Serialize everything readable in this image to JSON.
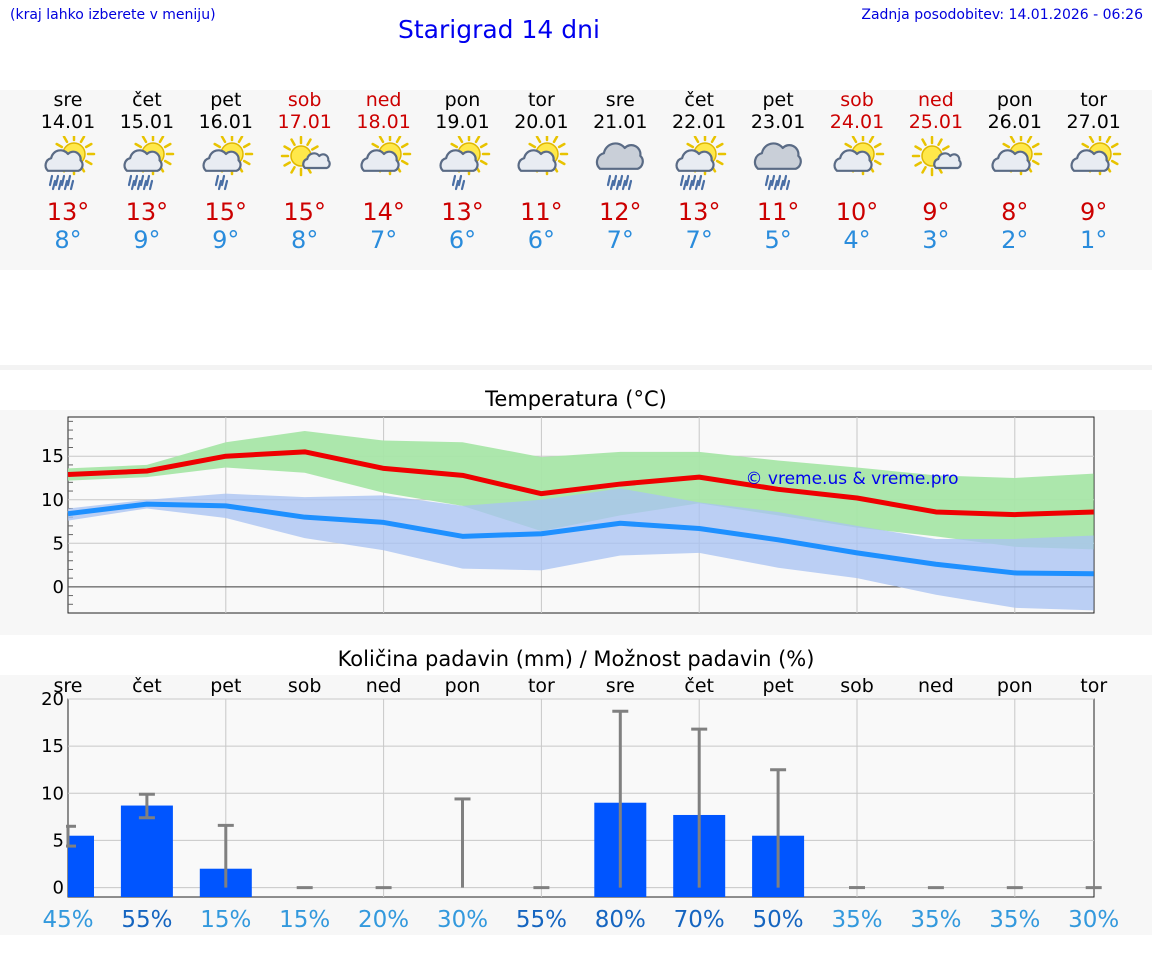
{
  "header": {
    "hint": "(kraj lahko izberete v meniju)",
    "title": "Starigrad 14 dni",
    "updated": "Zadnja posodobitev: 14.01.2026 - 06:26"
  },
  "days": [
    {
      "name": "sre",
      "date": "14.01",
      "weekend": false,
      "max": "13°",
      "min": "8°",
      "icon": "sun-cloud-rain-icon"
    },
    {
      "name": "čet",
      "date": "15.01",
      "weekend": false,
      "max": "13°",
      "min": "9°",
      "icon": "sun-cloud-rain-icon"
    },
    {
      "name": "pet",
      "date": "16.01",
      "weekend": false,
      "max": "15°",
      "min": "9°",
      "icon": "sun-cloud-light-rain-icon"
    },
    {
      "name": "sob",
      "date": "17.01",
      "weekend": true,
      "max": "15°",
      "min": "8°",
      "icon": "sun-small-cloud-icon"
    },
    {
      "name": "ned",
      "date": "18.01",
      "weekend": true,
      "max": "14°",
      "min": "7°",
      "icon": "sun-cloud-icon"
    },
    {
      "name": "pon",
      "date": "19.01",
      "weekend": false,
      "max": "13°",
      "min": "6°",
      "icon": "sun-cloud-light-rain-icon"
    },
    {
      "name": "tor",
      "date": "20.01",
      "weekend": false,
      "max": "11°",
      "min": "6°",
      "icon": "sun-cloud-icon"
    },
    {
      "name": "sre",
      "date": "21.01",
      "weekend": false,
      "max": "12°",
      "min": "7°",
      "icon": "cloud-rain-icon"
    },
    {
      "name": "čet",
      "date": "22.01",
      "weekend": false,
      "max": "13°",
      "min": "7°",
      "icon": "sun-cloud-rain-icon"
    },
    {
      "name": "pet",
      "date": "23.01",
      "weekend": false,
      "max": "11°",
      "min": "5°",
      "icon": "cloud-rain-icon"
    },
    {
      "name": "sob",
      "date": "24.01",
      "weekend": true,
      "max": "10°",
      "min": "4°",
      "icon": "sun-cloud-icon"
    },
    {
      "name": "ned",
      "date": "25.01",
      "weekend": true,
      "max": "9°",
      "min": "3°",
      "icon": "sun-small-cloud-icon"
    },
    {
      "name": "pon",
      "date": "26.01",
      "weekend": false,
      "max": "8°",
      "min": "2°",
      "icon": "sun-cloud-icon"
    },
    {
      "name": "tor",
      "date": "27.01",
      "weekend": false,
      "max": "9°",
      "min": "1°",
      "icon": "sun-cloud-icon"
    }
  ],
  "colors": {
    "max_line": "#ee0000",
    "min_line": "#1e90ff",
    "max_band": "#a8e6a8",
    "min_band": "#a9c3f2",
    "bar": "#0055ff",
    "whisker": "#808080",
    "weekend": "#cc0000"
  },
  "chart_data": [
    {
      "type": "line",
      "title": "Temperatura (°C)",
      "watermark": "© vreme.us & vreme.pro",
      "categories": [
        "sre",
        "čet",
        "pet",
        "sob",
        "ned",
        "pon",
        "tor",
        "sre",
        "čet",
        "pet",
        "sob",
        "ned",
        "pon",
        "tor"
      ],
      "ylim": [
        -3,
        19.5
      ],
      "yticks": [
        0,
        5,
        10,
        15
      ],
      "series": [
        {
          "name": "max",
          "values": [
            12.9,
            13.3,
            15.0,
            15.5,
            13.6,
            12.8,
            10.7,
            11.8,
            12.6,
            11.2,
            10.2,
            8.6,
            8.3,
            8.6
          ],
          "band_low": [
            12.2,
            12.6,
            13.7,
            13.1,
            10.8,
            9.3,
            6.4,
            8.2,
            9.6,
            8.2,
            6.8,
            5.8,
            4.6,
            4.3
          ],
          "band_high": [
            13.6,
            14.0,
            16.6,
            17.9,
            16.8,
            16.6,
            14.9,
            15.5,
            15.5,
            14.5,
            13.7,
            12.8,
            12.5,
            13.0
          ]
        },
        {
          "name": "min",
          "values": [
            8.4,
            9.5,
            9.3,
            8.0,
            7.4,
            5.8,
            6.1,
            7.3,
            6.7,
            5.4,
            3.9,
            2.6,
            1.6,
            1.5
          ],
          "band_low": [
            7.6,
            9.0,
            7.9,
            5.6,
            4.2,
            2.1,
            1.9,
            3.6,
            3.9,
            2.2,
            1.0,
            -0.9,
            -2.4,
            -2.7
          ],
          "band_high": [
            9.0,
            10.0,
            10.7,
            10.3,
            10.5,
            9.3,
            10.0,
            11.3,
            9.7,
            8.6,
            7.0,
            5.5,
            5.5,
            5.9
          ]
        }
      ]
    },
    {
      "type": "bar",
      "title": "Količina padavin (mm) / Možnost padavin (%)",
      "categories": [
        "sre",
        "čet",
        "pet",
        "sob",
        "ned",
        "pon",
        "tor",
        "sre",
        "čet",
        "pet",
        "sob",
        "ned",
        "pon",
        "tor"
      ],
      "ylim": [
        -1,
        20
      ],
      "yticks": [
        0,
        5,
        10,
        15,
        20
      ],
      "values": [
        5.5,
        8.7,
        2.0,
        0,
        0,
        0,
        0,
        9.0,
        7.7,
        5.5,
        0,
        0,
        0,
        0
      ],
      "range_low": [
        4.4,
        7.4,
        0,
        0,
        0,
        0,
        0,
        0,
        0,
        0,
        0,
        0,
        0,
        0
      ],
      "range_high": [
        6.5,
        9.9,
        6.6,
        0,
        0,
        9.4,
        0,
        18.7,
        16.8,
        12.5,
        0,
        0,
        0,
        0
      ],
      "chance": [
        "45%",
        "55%",
        "15%",
        "15%",
        "20%",
        "30%",
        "55%",
        "80%",
        "70%",
        "50%",
        "35%",
        "35%",
        "35%",
        "30%"
      ],
      "chance_colors": [
        "#3399dd",
        "#1565c0",
        "#3399dd",
        "#3399dd",
        "#3399dd",
        "#3399dd",
        "#1565c0",
        "#1565c0",
        "#1565c0",
        "#1565c0",
        "#3399dd",
        "#3399dd",
        "#3399dd",
        "#3399dd"
      ]
    }
  ]
}
